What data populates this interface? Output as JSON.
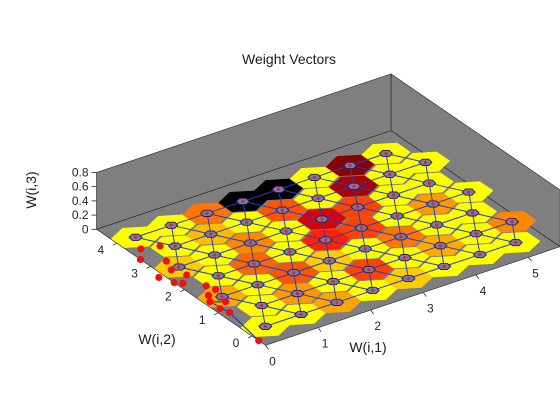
{
  "chart_data": {
    "type": "3d-surface-som",
    "title": "Weight Vectors",
    "xlabel": "W(i,1)",
    "ylabel": "W(i,2)",
    "zlabel": "W(i,3)",
    "x_ticks": [
      "0",
      "1",
      "2",
      "3",
      "4",
      "5"
    ],
    "y_ticks": [
      "0",
      "1",
      "2",
      "3",
      "4"
    ],
    "z_ticks": [
      "0",
      "0.2",
      "0.4",
      "0.6",
      "0.8"
    ],
    "xlim": [
      0,
      5.6
    ],
    "ylim": [
      -0.4,
      4.6
    ],
    "zlim": [
      0,
      0.8
    ],
    "grid": {
      "columns": 8,
      "rows": 7
    },
    "hex_colors": [
      [
        "#ffff00",
        "#ffff00",
        "#ffa500",
        "#ffff00",
        "#ffcc00",
        "#ffff00",
        "#ffff00",
        "#ffff00"
      ],
      [
        "#ffff00",
        "#ff9900",
        "#ffff00",
        "#ff4400",
        "#ffff00",
        "#ffaa00",
        "#ffff00",
        "#ff8800"
      ],
      [
        "#ffaa00",
        "#ffff00",
        "#ff5500",
        "#ffcc00",
        "#ffff00",
        "#ff7700",
        "#ffff00",
        "#ffff00"
      ],
      [
        "#ffff00",
        "#ff6600",
        "#ffff00",
        "#ff2200",
        "#ff4400",
        "#ffff00",
        "#ff9900",
        "#ffff00"
      ],
      [
        "#ffcc00",
        "#ffff00",
        "#ff8800",
        "#ffff00",
        "#dd0000",
        "#ff4400",
        "#ffff00",
        "#ffff00"
      ],
      [
        "#ffff00",
        "#ffbb00",
        "#ffff00",
        "#ff5500",
        "#ffff00",
        "#aa0000",
        "#ffff00",
        "#ffff00"
      ],
      [
        "#ffff00",
        "#ffff00",
        "#ff7700",
        "#000000",
        "#000000",
        "#ffff00",
        "#880000",
        "#ffff00"
      ]
    ],
    "input_points": [
      [
        0.0,
        -0.2,
        0
      ],
      [
        0.15,
        0.9,
        0
      ],
      [
        0.1,
        1.4,
        0
      ],
      [
        0.3,
        1.25,
        0
      ],
      [
        0.2,
        1.6,
        0
      ],
      [
        0.35,
        1.9,
        0
      ],
      [
        0.1,
        2.2,
        0
      ],
      [
        0.3,
        2.4,
        0
      ],
      [
        0.0,
        2.3,
        0
      ],
      [
        -0.1,
        2.6,
        0
      ],
      [
        0.2,
        2.7,
        0
      ],
      [
        0.3,
        3.0,
        0
      ],
      [
        0.0,
        3.3,
        0
      ],
      [
        0.5,
        3.5,
        0
      ],
      [
        0.2,
        3.6,
        0
      ],
      [
        0.1,
        1.1,
        0
      ],
      [
        0.4,
        1.7,
        0
      ]
    ],
    "colors": {
      "axes_bg": "#7f7f7f",
      "node_fill": "#7a7aa8",
      "node_stroke": "#1f1f5a",
      "link": "#1f3fbf",
      "input_point": "#ee1111"
    }
  }
}
